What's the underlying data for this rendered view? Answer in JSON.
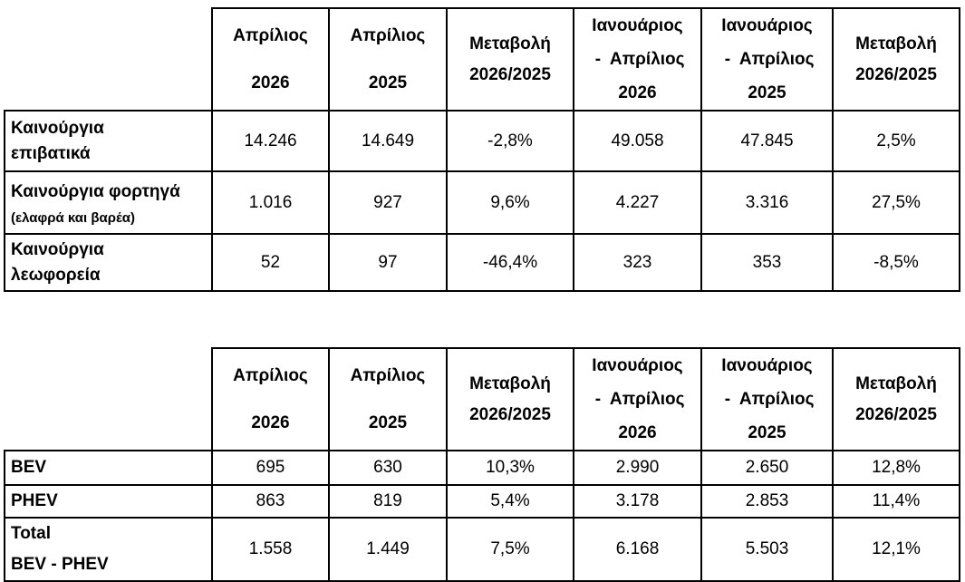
{
  "tables": [
    {
      "header": [
        [
          "Απρίλιος",
          "2026"
        ],
        [
          "Απρίλιος",
          "2025"
        ],
        [
          "Μεταβολή",
          "2026/2025"
        ],
        [
          "Ιανουάριος",
          " -  Απρίλιος",
          "2026"
        ],
        [
          "Ιανουάριος",
          " -  Απρίλιος",
          "2025"
        ],
        [
          "Μεταβολή",
          "2026/2025"
        ]
      ],
      "rows": [
        {
          "label": [
            "Καινούργια",
            "επιβατικά"
          ],
          "values": [
            "14.246",
            "14.649",
            "-2,8%",
            "49.058",
            "47.845",
            "2,5%"
          ]
        },
        {
          "label": [
            "Καινούργια φορτηγά"
          ],
          "note": "(ελαφρά και βαρέα)",
          "values": [
            "1.016",
            "927",
            "9,6%",
            "4.227",
            "3.316",
            "27,5%"
          ]
        },
        {
          "label": [
            "Καινούργια",
            "λεωφορεία"
          ],
          "values": [
            "52",
            "97",
            "-46,4%",
            "323",
            "353",
            "-8,5%"
          ]
        }
      ]
    },
    {
      "header": [
        [
          "Απρίλιος",
          "2026"
        ],
        [
          "Απρίλιος",
          "2025"
        ],
        [
          "Μεταβολή",
          "2026/2025"
        ],
        [
          "Ιανουάριος",
          " -  Απρίλιος",
          "2026"
        ],
        [
          "Ιανουάριος",
          " -  Απρίλιος",
          "2025"
        ],
        [
          "Μεταβολή",
          "2026/2025"
        ]
      ],
      "rows": [
        {
          "label": [
            "BEV"
          ],
          "values": [
            "695",
            "630",
            "10,3%",
            "2.990",
            "2.650",
            "12,8%"
          ]
        },
        {
          "label": [
            "PHEV"
          ],
          "values": [
            "863",
            "819",
            "5,4%",
            "3.178",
            "2.853",
            "11,4%"
          ]
        },
        {
          "label": [
            "Total",
            "BEV - PHEV"
          ],
          "values": [
            "1.558",
            "1.449",
            "7,5%",
            "6.168",
            "5.503",
            "12,1%"
          ]
        }
      ]
    }
  ]
}
